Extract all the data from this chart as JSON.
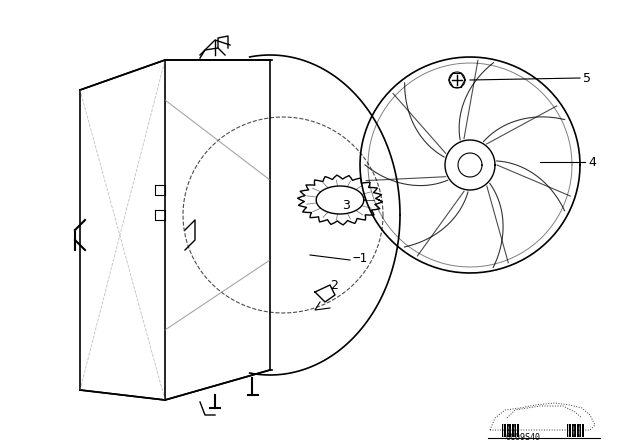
{
  "title": "",
  "background_color": "#ffffff",
  "line_color": "#000000",
  "part_labels": {
    "1": [
      -1,
      [
        330,
        265
      ]
    ],
    "2": [
      2,
      [
        318,
        278
      ]
    ],
    "3": [
      3,
      [
        330,
        195
      ]
    ],
    "4": [
      4,
      [
        490,
        165
      ]
    ],
    "5": [
      5,
      [
        497,
        80
      ]
    ]
  },
  "watermark_text": "0C09S40",
  "fig_width": 6.4,
  "fig_height": 4.48,
  "dpi": 100
}
